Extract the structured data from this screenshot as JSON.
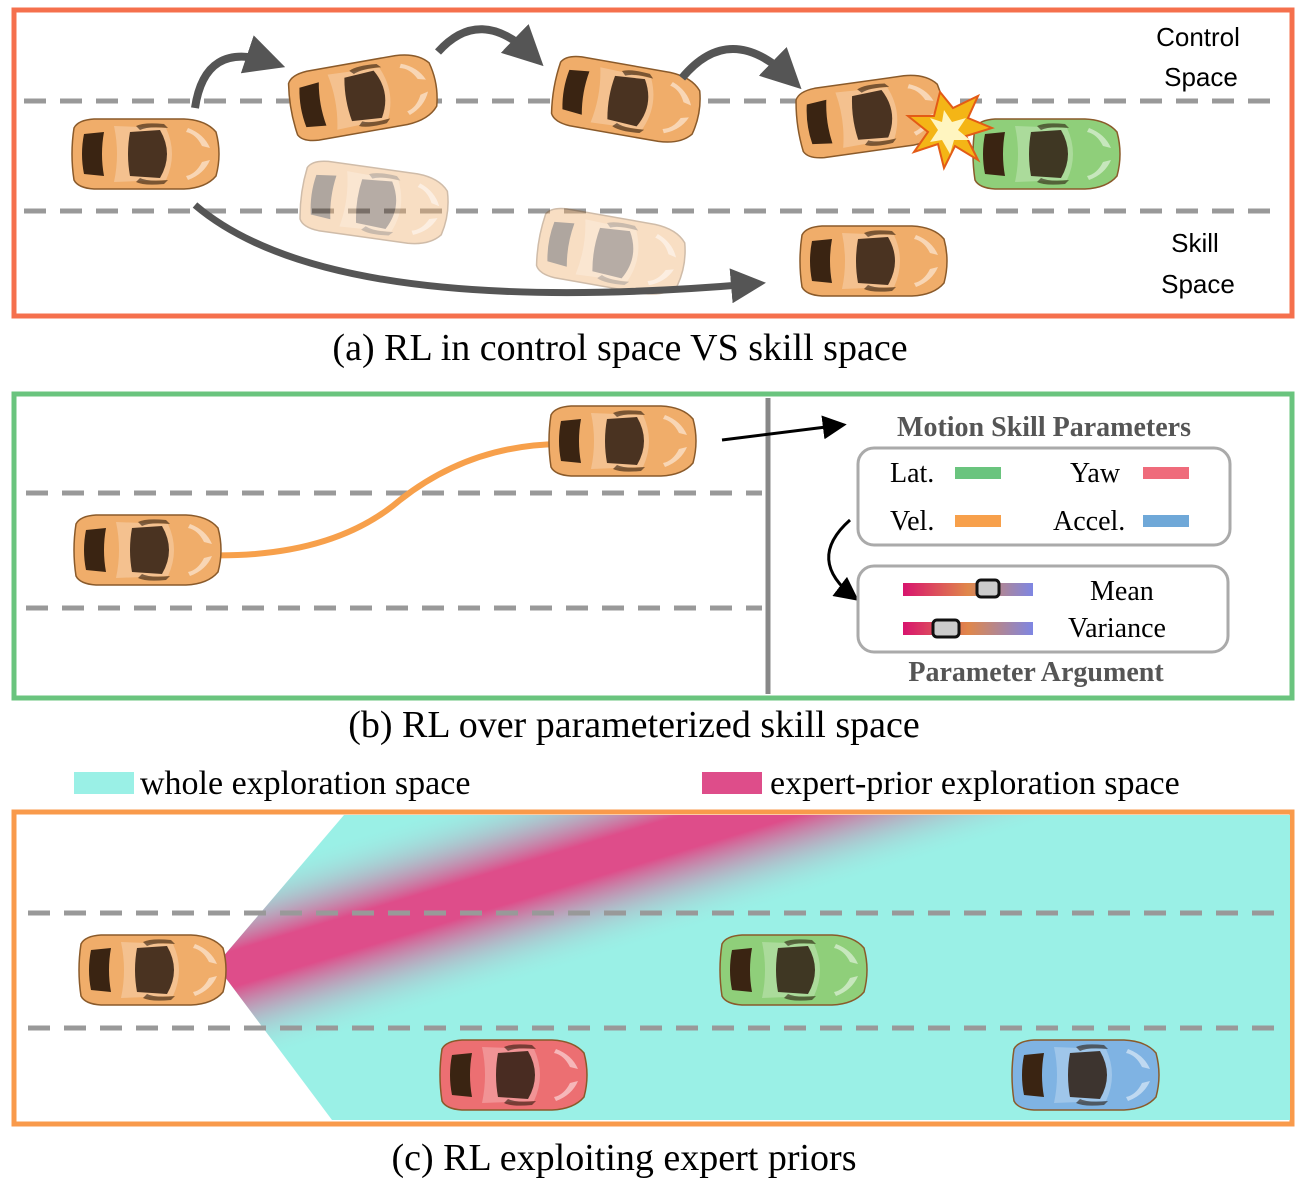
{
  "panel_a": {
    "caption": "(a) RL in control space VS skill space",
    "label_control_1": "Control",
    "label_control_2": "Space",
    "label_skill_1": "Skill",
    "label_skill_2": "Space",
    "border_color": "#f5704d"
  },
  "panel_b": {
    "caption": "(b) RL over parameterized skill space",
    "motion_title": "Motion Skill Parameters",
    "params": [
      {
        "label": "Lat.",
        "color": "#6ac47e"
      },
      {
        "label": "Yaw",
        "color": "#ef6b7b"
      },
      {
        "label": "Vel.",
        "color": "#f7a04b"
      },
      {
        "label": "Accel.",
        "color": "#6fa8d8"
      }
    ],
    "arg_mean": "Mean",
    "arg_variance": "Variance",
    "arg_title": "Parameter Argument",
    "border_color": "#6ac47e"
  },
  "panel_c": {
    "caption": "(c) RL exploiting expert priors",
    "legend_whole": "whole exploration space",
    "legend_expert": "expert-prior exploration space",
    "whole_color": "#9af0e6",
    "expert_color": "#de4d8a",
    "border_color": "#f99a4b"
  },
  "colors": {
    "ego_car": "#f0ad6a",
    "green_car": "#8fcf7a",
    "red_car": "#ec6f72",
    "blue_car": "#7fb3e3"
  }
}
